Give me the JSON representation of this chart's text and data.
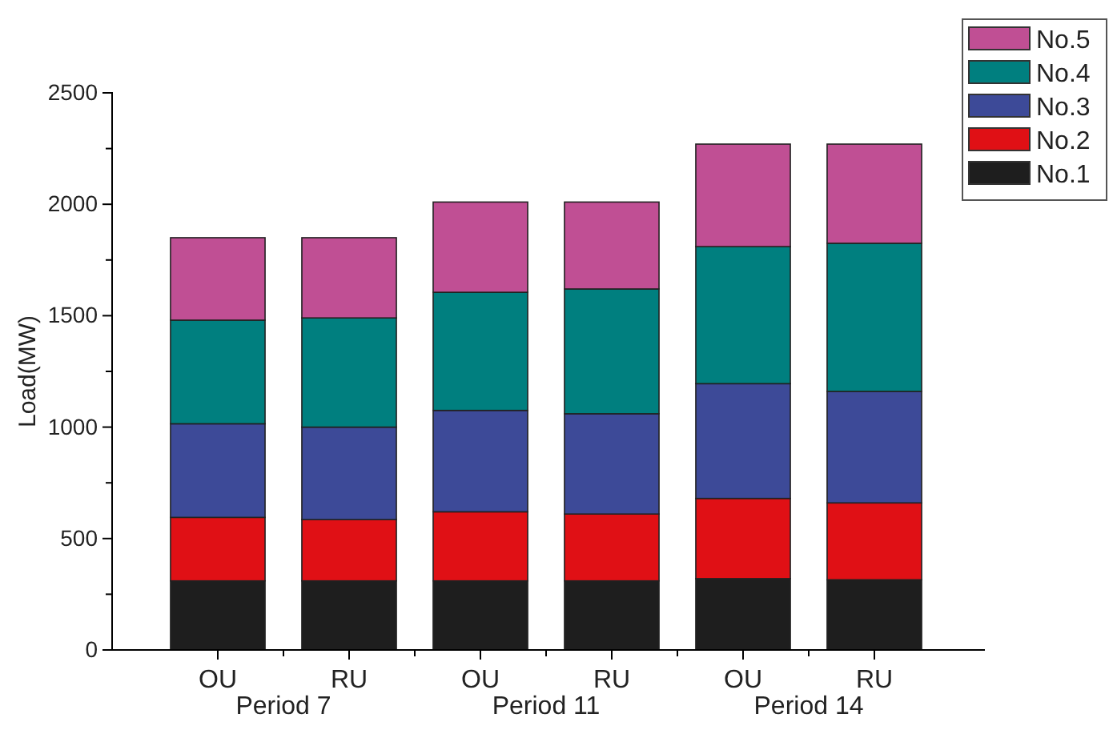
{
  "chart_data": {
    "type": "bar",
    "stacked": true,
    "ylabel": "Load(MW)",
    "categories": [
      "OU",
      "RU",
      "OU",
      "RU",
      "OU",
      "RU"
    ],
    "annotations": [
      "Period 7",
      "Period 11",
      "Period 14"
    ],
    "series": [
      {
        "name": "No.1",
        "color": "#1e1e1e",
        "values": [
          310,
          310,
          310,
          310,
          320,
          315
        ]
      },
      {
        "name": "No.2",
        "color": "#e01015",
        "values": [
          285,
          275,
          310,
          300,
          360,
          345
        ]
      },
      {
        "name": "No.3",
        "color": "#3d4a98",
        "values": [
          420,
          415,
          455,
          450,
          515,
          500
        ]
      },
      {
        "name": "No.4",
        "color": "#007f7f",
        "values": [
          465,
          490,
          530,
          560,
          615,
          665
        ]
      },
      {
        "name": "No.5",
        "color": "#c04f94",
        "values": [
          370,
          360,
          405,
          390,
          460,
          445
        ]
      }
    ],
    "ylim": [
      0,
      2500
    ],
    "yticks": [
      0,
      {
        "value": 250,
        "label": null
      },
      500,
      {
        "value": 750,
        "label": null
      },
      1000,
      {
        "value": 1250,
        "label": null
      },
      1500,
      {
        "value": 1750,
        "label": null
      },
      2000,
      {
        "value": 2250,
        "label": null
      },
      2500
    ],
    "legend": "top right",
    "grid": false
  }
}
